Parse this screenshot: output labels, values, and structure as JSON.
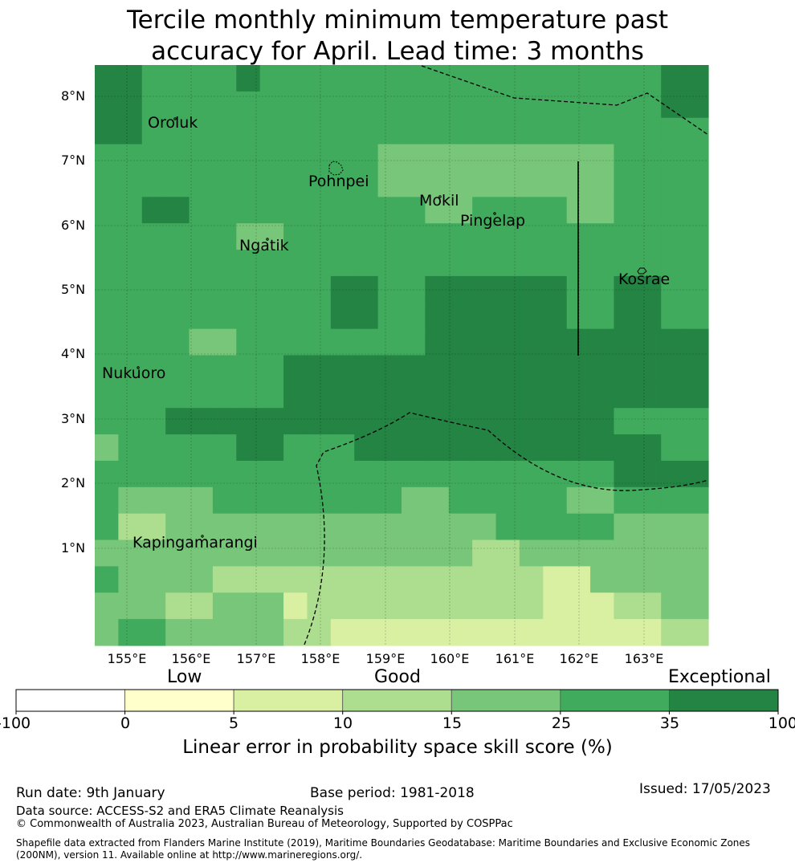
{
  "title_line1": "Tercile monthly minimum temperature past",
  "title_line2": "accuracy for April. Lead time: 3 months",
  "map": {
    "lat_labels": [
      "8°N",
      "7°N",
      "6°N",
      "5°N",
      "4°N",
      "3°N",
      "2°N",
      "1°N"
    ],
    "lon_labels": [
      "155°E",
      "156°E",
      "157°E",
      "158°E",
      "159°E",
      "160°E",
      "161°E",
      "162°E",
      "163°E"
    ],
    "places": [
      {
        "id": "oroluk",
        "name": "Oroluk"
      },
      {
        "id": "pohnpei",
        "name": "Pohnpei"
      },
      {
        "id": "mokil",
        "name": "Mokil"
      },
      {
        "id": "pingelap",
        "name": "Pingelap"
      },
      {
        "id": "ngatik",
        "name": "Ngatik"
      },
      {
        "id": "kosrae",
        "name": "Kosrae"
      },
      {
        "id": "nukuoro",
        "name": "Nukuoro"
      },
      {
        "id": "kapingamarangi",
        "name": "Kapingamarangi"
      }
    ],
    "grid_skill_categories": [
      [
        6,
        6,
        5,
        5,
        5,
        5,
        6,
        5,
        5,
        5,
        5,
        5,
        5,
        5,
        5,
        5,
        5,
        5,
        5,
        5,
        5,
        5,
        5,
        5,
        6,
        6
      ],
      [
        6,
        6,
        5,
        5,
        5,
        5,
        5,
        5,
        5,
        5,
        5,
        5,
        5,
        5,
        5,
        5,
        5,
        5,
        5,
        5,
        5,
        5,
        5,
        5,
        6,
        6
      ],
      [
        6,
        6,
        5,
        5,
        5,
        5,
        5,
        5,
        5,
        5,
        5,
        5,
        5,
        5,
        5,
        5,
        5,
        5,
        5,
        5,
        5,
        5,
        5,
        5,
        5,
        5
      ],
      [
        5,
        5,
        5,
        5,
        5,
        5,
        5,
        5,
        5,
        5,
        5,
        5,
        4,
        4,
        4,
        4,
        4,
        4,
        4,
        4,
        4,
        4,
        5,
        5,
        5,
        5
      ],
      [
        5,
        5,
        5,
        5,
        5,
        5,
        5,
        5,
        5,
        5,
        5,
        5,
        4,
        4,
        4,
        4,
        4,
        4,
        4,
        4,
        4,
        4,
        5,
        5,
        5,
        5
      ],
      [
        5,
        5,
        6,
        6,
        5,
        5,
        5,
        5,
        5,
        5,
        5,
        5,
        5,
        5,
        4,
        4,
        5,
        5,
        5,
        5,
        4,
        4,
        5,
        5,
        5,
        5
      ],
      [
        5,
        5,
        5,
        5,
        5,
        5,
        4,
        4,
        5,
        5,
        5,
        5,
        5,
        5,
        5,
        5,
        5,
        5,
        5,
        5,
        5,
        5,
        5,
        5,
        5,
        5
      ],
      [
        5,
        5,
        5,
        5,
        5,
        5,
        5,
        5,
        5,
        5,
        5,
        5,
        5,
        5,
        5,
        5,
        5,
        5,
        5,
        5,
        5,
        5,
        5,
        5,
        5,
        5
      ],
      [
        5,
        5,
        5,
        5,
        5,
        5,
        5,
        5,
        5,
        5,
        6,
        6,
        5,
        5,
        6,
        6,
        6,
        6,
        6,
        6,
        5,
        5,
        6,
        6,
        5,
        5
      ],
      [
        5,
        5,
        5,
        5,
        5,
        5,
        5,
        5,
        5,
        5,
        6,
        6,
        5,
        5,
        6,
        6,
        6,
        6,
        6,
        6,
        5,
        5,
        6,
        6,
        5,
        5
      ],
      [
        5,
        5,
        5,
        5,
        4,
        4,
        5,
        5,
        5,
        5,
        5,
        5,
        5,
        5,
        6,
        6,
        6,
        6,
        6,
        6,
        6,
        6,
        6,
        6,
        6,
        6
      ],
      [
        5,
        5,
        5,
        5,
        5,
        5,
        5,
        5,
        6,
        6,
        6,
        6,
        6,
        6,
        6,
        6,
        6,
        6,
        6,
        6,
        6,
        6,
        6,
        6,
        6,
        6
      ],
      [
        5,
        5,
        5,
        5,
        5,
        5,
        5,
        5,
        6,
        6,
        6,
        6,
        6,
        6,
        6,
        6,
        6,
        6,
        6,
        6,
        6,
        6,
        6,
        6,
        6,
        6
      ],
      [
        5,
        5,
        5,
        6,
        6,
        6,
        6,
        6,
        6,
        6,
        6,
        6,
        6,
        6,
        6,
        6,
        6,
        6,
        6,
        6,
        6,
        6,
        5,
        5,
        5,
        5
      ],
      [
        4,
        5,
        5,
        5,
        5,
        5,
        6,
        6,
        5,
        5,
        5,
        6,
        6,
        6,
        6,
        6,
        6,
        6,
        6,
        6,
        6,
        6,
        6,
        6,
        5,
        5
      ],
      [
        5,
        5,
        5,
        5,
        5,
        5,
        5,
        5,
        5,
        5,
        5,
        5,
        5,
        5,
        5,
        5,
        5,
        5,
        5,
        5,
        5,
        5,
        6,
        6,
        6,
        6
      ],
      [
        5,
        4,
        4,
        4,
        4,
        5,
        5,
        5,
        5,
        5,
        5,
        5,
        5,
        4,
        4,
        5,
        5,
        5,
        5,
        5,
        4,
        4,
        5,
        5,
        5,
        5
      ],
      [
        5,
        3,
        3,
        4,
        4,
        4,
        4,
        4,
        4,
        4,
        4,
        4,
        4,
        4,
        4,
        4,
        4,
        5,
        5,
        5,
        5,
        5,
        4,
        4,
        4,
        4
      ],
      [
        4,
        4,
        4,
        4,
        4,
        4,
        4,
        4,
        4,
        4,
        4,
        4,
        4,
        4,
        4,
        4,
        3,
        3,
        4,
        4,
        4,
        4,
        4,
        4,
        4,
        4
      ],
      [
        5,
        4,
        4,
        4,
        4,
        3,
        3,
        3,
        3,
        3,
        3,
        3,
        3,
        3,
        3,
        3,
        3,
        3,
        3,
        2,
        2,
        4,
        4,
        4,
        4,
        4
      ],
      [
        4,
        4,
        4,
        3,
        3,
        4,
        4,
        4,
        2,
        3,
        3,
        3,
        3,
        3,
        3,
        3,
        3,
        3,
        3,
        2,
        2,
        2,
        3,
        3,
        4,
        4
      ],
      [
        4,
        5,
        5,
        4,
        4,
        4,
        4,
        4,
        3,
        3,
        2,
        2,
        2,
        2,
        2,
        2,
        2,
        2,
        2,
        2,
        2,
        2,
        2,
        2,
        3,
        3
      ]
    ]
  },
  "colorbar": {
    "categories": [
      {
        "label": "Low"
      },
      {
        "label": "Good"
      },
      {
        "label": "Exceptional"
      }
    ],
    "ticks": [
      "-100",
      "0",
      "5",
      "10",
      "15",
      "25",
      "35",
      "100"
    ],
    "colors": [
      "#ffffff",
      "#ffffcc",
      "#d9f0a3",
      "#addd8e",
      "#78c679",
      "#41ab5d",
      "#238443"
    ],
    "title": "Linear error in probability space skill score (%)"
  },
  "footer": {
    "run_date": "Run date: 9th January",
    "base_period": "Base period: 1981-2018",
    "issued": "Issued: 17/05/2023",
    "data_source": "Data source: ACCESS-S2 and ERA5 Climate Reanalysis",
    "copyright": "© Commonwealth of Australia 2023, Australian Bureau of Meteorology, Supported by COSPPac",
    "shapefile_line1": "Shapefile data extracted from Flanders Marine Institute (2019), Maritime Boundaries Geodatabase: Maritime Boundaries and Exclusive Economic Zones",
    "shapefile_line2": "(200NM), version 11. Available online at http://www.marineregions.org/."
  }
}
